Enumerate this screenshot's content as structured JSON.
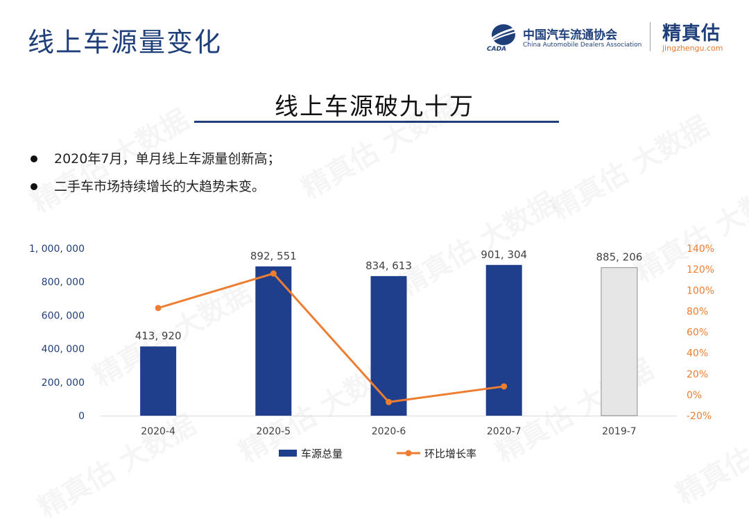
{
  "header": {
    "title": "线上车源量变化",
    "org_cn": "中国汽车流通协会",
    "org_en": "China Automobile Dealers Association",
    "org_abbr": "CADA",
    "brand_cn": "精真估",
    "brand_url": "jingzhengu.com"
  },
  "subtitle": "线上车源破九十万",
  "bullets": [
    "2020年7月，单月线上车源量创新高；",
    "二手车市场持续增长的大趋势未变。"
  ],
  "watermark": "精真估 大数据",
  "colors": {
    "bar": "#1f3f8c",
    "bar_highlight": "#e6e6e6",
    "line": "#ed7d31",
    "title": "#1f3f7a",
    "right_axis": "#ed7d31"
  },
  "chart_data": {
    "type": "bar",
    "categories": [
      "2020-4",
      "2020-5",
      "2020-6",
      "2020-7",
      "2019-7"
    ],
    "series": [
      {
        "name": "车源总量",
        "type": "bar",
        "axis": "left",
        "values": [
          413920,
          892551,
          834613,
          901304,
          885206
        ],
        "labels": [
          "413, 920",
          "892, 551",
          "834, 613",
          "901, 304",
          "885, 206"
        ]
      },
      {
        "name": "环比增长率",
        "type": "line",
        "axis": "right",
        "values": [
          83,
          116,
          -7,
          8,
          null
        ]
      }
    ],
    "y_left": {
      "ylim": [
        0,
        1000000
      ],
      "ticks": [
        "0",
        "200, 000",
        "400, 000",
        "600, 000",
        "800, 000",
        "1, 000, 000"
      ]
    },
    "y_right": {
      "ylim": [
        -20,
        140
      ],
      "ticks": [
        "-20%",
        "0%",
        "20%",
        "40%",
        "60%",
        "80%",
        "100%",
        "120%",
        "140%"
      ]
    },
    "legend_position": "bottom",
    "grid": false
  }
}
